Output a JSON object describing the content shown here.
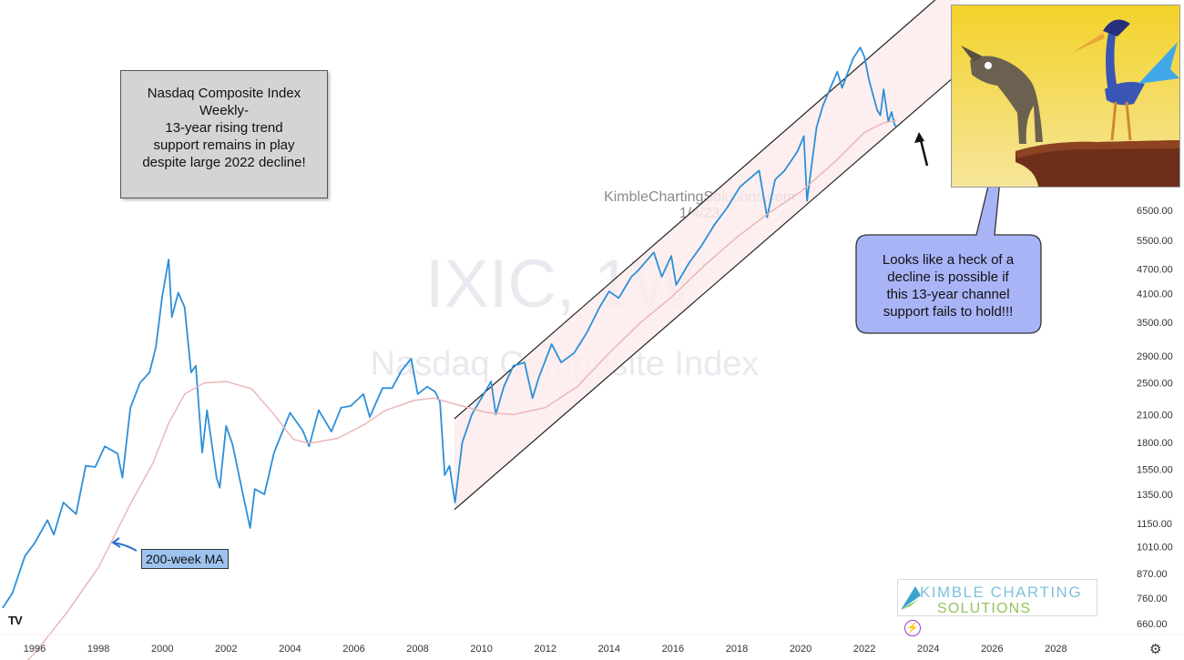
{
  "chart_data": {
    "type": "line",
    "symbol": "IXIC, 1W",
    "subtitle": "Nasdaq Composite Index",
    "watermark": "KimbleChartingSolutions.com",
    "watermark_date": "1/4/23",
    "y_scale": "log",
    "y_ticks": [
      660,
      760,
      870,
      1010,
      1150,
      1350,
      1550,
      1800,
      2100,
      2500,
      2900,
      3500,
      4100,
      4700,
      5500,
      6500
    ],
    "y_tick_labels": [
      "660.00",
      "760.00",
      "870.00",
      "1010.00",
      "1150.00",
      "1350.00",
      "1550.00",
      "1800.00",
      "2100.00",
      "2500.00",
      "2900.00",
      "3500.00",
      "4100.00",
      "4700.00",
      "5500.00",
      "6500.00"
    ],
    "x_ticks": [
      1996,
      1998,
      2000,
      2002,
      2004,
      2006,
      2008,
      2010,
      2012,
      2014,
      2016,
      2018,
      2020,
      2022,
      2024,
      2026,
      2028
    ],
    "xlim": [
      1995.0,
      2030.3
    ],
    "series": [
      {
        "name": "IXIC",
        "color": "#2d8fd8",
        "points": [
          [
            1995.0,
            720
          ],
          [
            1995.3,
            780
          ],
          [
            1995.7,
            960
          ],
          [
            1996.0,
            1030
          ],
          [
            1996.4,
            1170
          ],
          [
            1996.6,
            1080
          ],
          [
            1996.9,
            1290
          ],
          [
            1997.3,
            1210
          ],
          [
            1997.6,
            1580
          ],
          [
            1997.9,
            1570
          ],
          [
            1998.2,
            1760
          ],
          [
            1998.6,
            1690
          ],
          [
            1998.75,
            1480
          ],
          [
            1999.0,
            2180
          ],
          [
            1999.3,
            2500
          ],
          [
            1999.6,
            2650
          ],
          [
            1999.8,
            3050
          ],
          [
            2000.0,
            4050
          ],
          [
            2000.2,
            4950
          ],
          [
            2000.3,
            3600
          ],
          [
            2000.5,
            4120
          ],
          [
            2000.7,
            3800
          ],
          [
            2000.9,
            2650
          ],
          [
            2001.05,
            2750
          ],
          [
            2001.25,
            1700
          ],
          [
            2001.4,
            2150
          ],
          [
            2001.7,
            1480
          ],
          [
            2001.8,
            1400
          ],
          [
            2002.0,
            1970
          ],
          [
            2002.2,
            1780
          ],
          [
            2002.5,
            1380
          ],
          [
            2002.75,
            1120
          ],
          [
            2002.9,
            1390
          ],
          [
            2003.2,
            1350
          ],
          [
            2003.5,
            1700
          ],
          [
            2003.8,
            1940
          ],
          [
            2004.0,
            2120
          ],
          [
            2004.4,
            1920
          ],
          [
            2004.6,
            1760
          ],
          [
            2004.9,
            2150
          ],
          [
            2005.3,
            1910
          ],
          [
            2005.6,
            2180
          ],
          [
            2005.9,
            2200
          ],
          [
            2006.3,
            2350
          ],
          [
            2006.5,
            2070
          ],
          [
            2006.9,
            2430
          ],
          [
            2007.2,
            2430
          ],
          [
            2007.5,
            2680
          ],
          [
            2007.8,
            2860
          ],
          [
            2008.0,
            2350
          ],
          [
            2008.3,
            2450
          ],
          [
            2008.55,
            2380
          ],
          [
            2008.7,
            2250
          ],
          [
            2008.85,
            1500
          ],
          [
            2009.0,
            1580
          ],
          [
            2009.17,
            1290
          ],
          [
            2009.4,
            1800
          ],
          [
            2009.7,
            2100
          ],
          [
            2010.0,
            2300
          ],
          [
            2010.3,
            2520
          ],
          [
            2010.45,
            2100
          ],
          [
            2010.7,
            2450
          ],
          [
            2011.0,
            2750
          ],
          [
            2011.35,
            2800
          ],
          [
            2011.6,
            2300
          ],
          [
            2011.8,
            2580
          ],
          [
            2012.2,
            3100
          ],
          [
            2012.5,
            2800
          ],
          [
            2012.9,
            2950
          ],
          [
            2013.3,
            3300
          ],
          [
            2013.7,
            3800
          ],
          [
            2014.0,
            4150
          ],
          [
            2014.3,
            4000
          ],
          [
            2014.7,
            4500
          ],
          [
            2014.9,
            4650
          ],
          [
            2015.4,
            5150
          ],
          [
            2015.65,
            4500
          ],
          [
            2015.95,
            5050
          ],
          [
            2016.1,
            4300
          ],
          [
            2016.5,
            4850
          ],
          [
            2016.9,
            5350
          ],
          [
            2017.3,
            6000
          ],
          [
            2017.7,
            6600
          ],
          [
            2018.1,
            7400
          ],
          [
            2018.7,
            8100
          ],
          [
            2018.95,
            6250
          ],
          [
            2019.2,
            7700
          ],
          [
            2019.5,
            8100
          ],
          [
            2019.9,
            9000
          ],
          [
            2020.1,
            9800
          ],
          [
            2020.2,
            6850
          ],
          [
            2020.5,
            10300
          ],
          [
            2020.7,
            11600
          ],
          [
            2020.95,
            12900
          ],
          [
            2021.15,
            14000
          ],
          [
            2021.3,
            12800
          ],
          [
            2021.65,
            15100
          ],
          [
            2021.87,
            16000
          ],
          [
            2022.0,
            15200
          ],
          [
            2022.15,
            13300
          ],
          [
            2022.4,
            11300
          ],
          [
            2022.5,
            11000
          ],
          [
            2022.6,
            12700
          ],
          [
            2022.75,
            10600
          ],
          [
            2022.85,
            11200
          ],
          [
            2022.95,
            10400
          ],
          [
            2023.0,
            10350
          ]
        ]
      },
      {
        "name": "200-week MA",
        "color": "#eab2b2",
        "points": [
          [
            1995.0,
            470
          ],
          [
            1996.0,
            560
          ],
          [
            1997.0,
            700
          ],
          [
            1998.0,
            900
          ],
          [
            1999.0,
            1280
          ],
          [
            1999.7,
            1600
          ],
          [
            2000.2,
            2000
          ],
          [
            2000.7,
            2350
          ],
          [
            2001.3,
            2500
          ],
          [
            2002.0,
            2520
          ],
          [
            2002.8,
            2420
          ],
          [
            2003.5,
            2100
          ],
          [
            2004.1,
            1830
          ],
          [
            2004.6,
            1790
          ],
          [
            2005.5,
            1840
          ],
          [
            2006.3,
            1980
          ],
          [
            2007.0,
            2150
          ],
          [
            2007.9,
            2270
          ],
          [
            2008.5,
            2300
          ],
          [
            2009.2,
            2220
          ],
          [
            2010.2,
            2120
          ],
          [
            2011.0,
            2100
          ],
          [
            2012.0,
            2180
          ],
          [
            2013.0,
            2450
          ],
          [
            2014.0,
            2950
          ],
          [
            2015.0,
            3500
          ],
          [
            2016.0,
            4050
          ],
          [
            2017.0,
            4800
          ],
          [
            2018.0,
            5600
          ],
          [
            2019.0,
            6400
          ],
          [
            2020.0,
            7200
          ],
          [
            2021.0,
            8400
          ],
          [
            2022.0,
            10000
          ],
          [
            2022.6,
            10550
          ],
          [
            2023.0,
            10700
          ]
        ]
      }
    ],
    "channel": {
      "upper": [
        [
          2009.15,
          2050
        ],
        [
          2025.0,
          23500
        ]
      ],
      "lower": [
        [
          2009.15,
          1240
        ],
        [
          2025.0,
          14000
        ]
      ]
    },
    "grid": false,
    "legend": "none"
  },
  "annotations": {
    "info_box": [
      "Nasdaq Composite Index",
      "Weekly-",
      "",
      "13-year rising trend",
      "support remains in play",
      "despite large 2022 decline!"
    ],
    "callout": [
      "Looks like a heck of a",
      "decline is possible if",
      "this 13-year channel",
      "support fails to hold!!!"
    ],
    "ma_label": "200-week MA"
  },
  "branding": {
    "line1": "KIMBLE CHARTING",
    "line2": "SOLUTIONS",
    "tv_logo": "TV"
  },
  "colors": {
    "price": "#2d8fd8",
    "ma": "#eab2b2",
    "channel_fill": "#fdecec",
    "callout": "#a9b4f7"
  }
}
